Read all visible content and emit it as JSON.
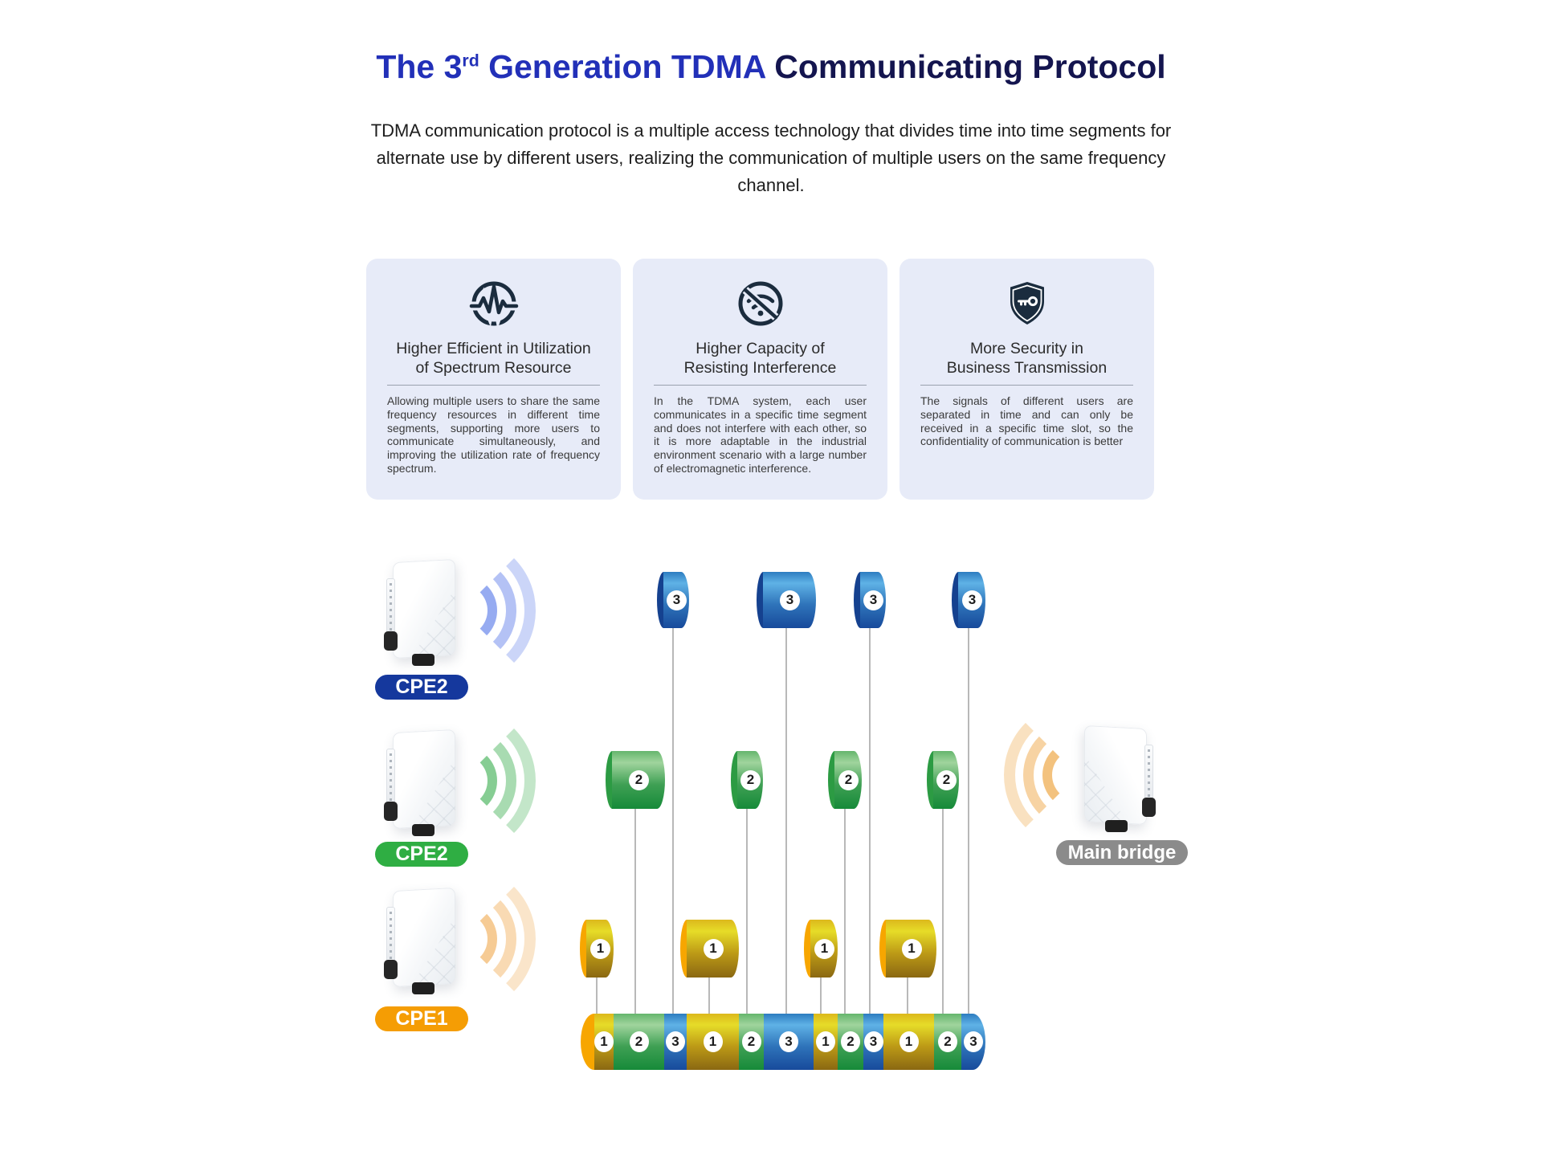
{
  "title": {
    "part1": "The 3",
    "sup": "rd",
    "part2": " Generation TDMA",
    "part3": " Communicating Protocol"
  },
  "subtitle": "TDMA communication protocol is a multiple access technology that divides time into time segments for alternate use by different users, realizing the communication of multiple users on the same frequency channel.",
  "colors": {
    "title_blue": "#2230b8",
    "title_navy": "#14154f",
    "card_bg": "#e7ebf8",
    "icon": "#1b2c3e",
    "line": "#8a8a8a",
    "slot1": {
      "cap": "#f7a600",
      "grad": [
        "#dcb81c",
        "#e6dc28",
        "#bd9a16",
        "#8a6812"
      ],
      "pill": "#f59d04"
    },
    "slot2": {
      "cap": "#2c9b43",
      "grad": [
        "#65b66d",
        "#a0d49d",
        "#3fa054",
        "#168a39"
      ],
      "pill": "#2fae43"
    },
    "slot3": {
      "cap": "#15418f",
      "grad": [
        "#2d7cc0",
        "#5fb2e6",
        "#2f74ba",
        "#174a9b"
      ],
      "pill": "#15389d"
    },
    "bridge_pill": "#8b8b8b"
  },
  "cards": [
    {
      "icon": "spectrum-pulse-icon",
      "title_line1": "Higher Efficient in Utilization",
      "title_line2": "of Spectrum Resource",
      "body": "Allowing multiple users to share the same frequency resources in different time segments, supporting more users to communicate simultaneously, and improving the utilization rate of frequency spectrum."
    },
    {
      "icon": "no-interference-icon",
      "title_line1": "Higher Capacity of",
      "title_line2": "Resisting Interference",
      "body": "In the TDMA system, each user communicates in a specific time segment and does not interfere with each other, so it is more adaptable in the industrial environment scenario with a large number of electromagnetic interference."
    },
    {
      "icon": "shield-key-icon",
      "title_line1": "More Security in",
      "title_line2": "Business Transmission",
      "body": "The signals of different users are separated in time and can only be received in a specific time slot, so the confidentiality of communication is better"
    }
  ],
  "diagram": {
    "devices": [
      {
        "label": "CPE2",
        "slot": "3"
      },
      {
        "label": "CPE2",
        "slot": "2"
      },
      {
        "label": "CPE1",
        "slot": "1"
      }
    ],
    "main_bridge": {
      "label": "Main bridge"
    },
    "rows": [
      {
        "slot": "3",
        "count": 4
      },
      {
        "slot": "2",
        "count": 4
      },
      {
        "slot": "1",
        "count": 4
      }
    ],
    "timeline": {
      "slots": [
        "1",
        "2",
        "3",
        "1",
        "2",
        "3",
        "1",
        "2",
        "3",
        "1",
        "2",
        "3"
      ]
    }
  }
}
